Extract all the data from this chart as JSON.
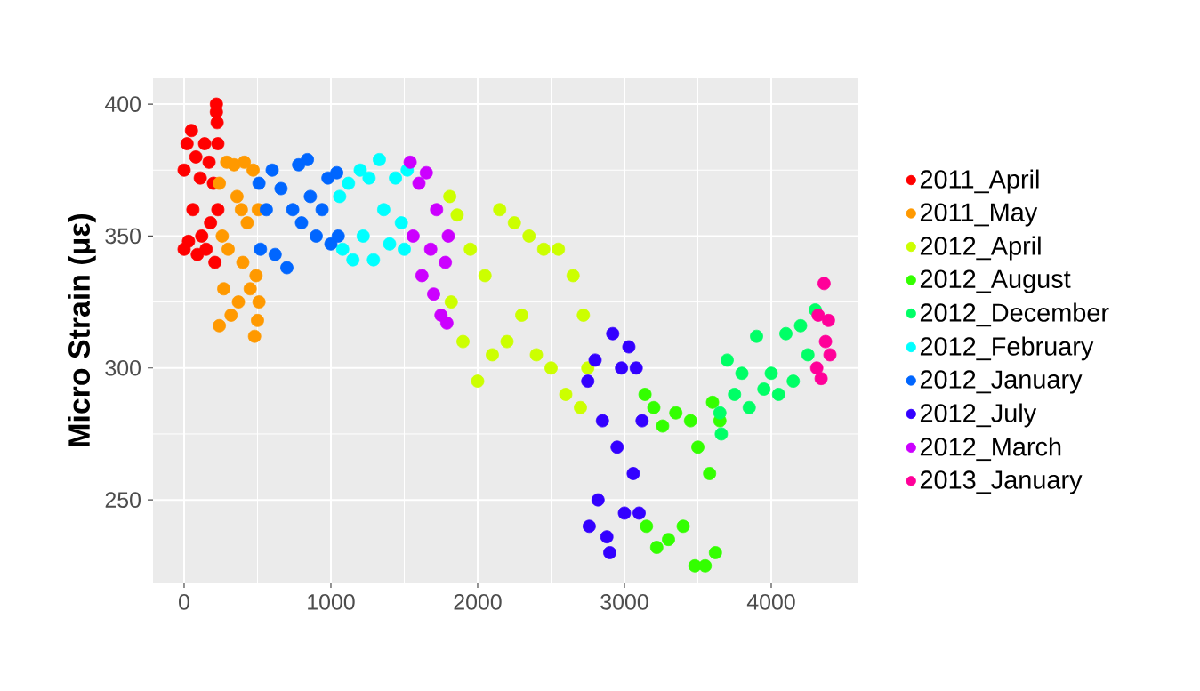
{
  "chart_data": {
    "type": "scatter",
    "ylabel": "Micro Strain (με)",
    "xlim": [
      -212,
      4594
    ],
    "ylim": [
      218.7,
      409.8
    ],
    "xticks": [
      0,
      1000,
      2000,
      3000,
      4000
    ],
    "yticks": [
      250,
      300,
      350,
      400
    ],
    "grid": true,
    "legend": "right",
    "marker": "circle",
    "series": [
      {
        "name": "2011_April",
        "color": "#ff0000",
        "x": [
          0,
          0,
          20,
          30,
          50,
          60,
          80,
          90,
          110,
          120,
          140,
          150,
          170,
          180,
          200,
          210,
          220,
          220,
          225,
          230,
          230
        ],
        "values": [
          375,
          345,
          385,
          348,
          390,
          360,
          380,
          343,
          372,
          350,
          385,
          345,
          378,
          355,
          370,
          340,
          400,
          397,
          393,
          385,
          360
        ]
      },
      {
        "name": "2011_May",
        "color": "#ff9900",
        "x": [
          240,
          240,
          260,
          270,
          290,
          300,
          320,
          340,
          360,
          370,
          390,
          400,
          410,
          430,
          450,
          470,
          480,
          490,
          500,
          505,
          510
        ],
        "values": [
          370,
          316,
          350,
          330,
          378,
          345,
          320,
          377,
          365,
          325,
          360,
          340,
          378,
          355,
          330,
          375,
          312,
          335,
          318,
          360,
          325
        ]
      },
      {
        "name": "2012_April",
        "color": "#ccff00",
        "x": [
          1810,
          1820,
          1860,
          1900,
          1950,
          2000,
          2050,
          2100,
          2150,
          2200,
          2250,
          2300,
          2350,
          2400,
          2450,
          2500,
          2550,
          2600,
          2650,
          2700,
          2720,
          2750
        ],
        "values": [
          365,
          325,
          358,
          310,
          345,
          295,
          335,
          305,
          360,
          310,
          355,
          320,
          350,
          305,
          345,
          300,
          345,
          290,
          335,
          285,
          320,
          300
        ]
      },
      {
        "name": "2012_August",
        "color": "#33ff00",
        "x": [
          3140,
          3150,
          3200,
          3220,
          3260,
          3300,
          3350,
          3400,
          3450,
          3480,
          3500,
          3550,
          3580,
          3600,
          3620,
          3650
        ],
        "values": [
          290,
          240,
          285,
          232,
          278,
          235,
          283,
          240,
          280,
          225,
          270,
          225,
          260,
          287,
          230,
          280
        ]
      },
      {
        "name": "2012_December",
        "color": "#00ff66",
        "x": [
          3650,
          3660,
          3700,
          3750,
          3800,
          3850,
          3900,
          3950,
          4000,
          4050,
          4100,
          4150,
          4200,
          4250,
          4300
        ],
        "values": [
          283,
          275,
          303,
          290,
          298,
          285,
          312,
          292,
          298,
          290,
          313,
          295,
          316,
          305,
          322
        ]
      },
      {
        "name": "2012_February",
        "color": "#00ffff",
        "x": [
          1060,
          1080,
          1120,
          1150,
          1200,
          1220,
          1260,
          1290,
          1330,
          1360,
          1400,
          1440,
          1480,
          1500,
          1520
        ],
        "values": [
          365,
          345,
          370,
          341,
          375,
          350,
          372,
          341,
          379,
          360,
          347,
          372,
          355,
          345,
          375
        ]
      },
      {
        "name": "2012_January",
        "color": "#0066ff",
        "x": [
          510,
          520,
          560,
          600,
          620,
          660,
          700,
          740,
          780,
          800,
          840,
          860,
          900,
          940,
          980,
          1000,
          1040,
          1050
        ],
        "values": [
          370,
          345,
          360,
          375,
          343,
          368,
          338,
          360,
          377,
          355,
          379,
          365,
          350,
          360,
          372,
          347,
          374,
          350
        ]
      },
      {
        "name": "2012_July",
        "color": "#3300ff",
        "x": [
          2750,
          2760,
          2800,
          2820,
          2850,
          2880,
          2900,
          2920,
          2950,
          2980,
          3000,
          3030,
          3060,
          3080,
          3100,
          3120
        ],
        "values": [
          295,
          240,
          303,
          250,
          280,
          236,
          230,
          313,
          270,
          300,
          245,
          308,
          260,
          300,
          245,
          280
        ]
      },
      {
        "name": "2012_March",
        "color": "#cc00ff",
        "x": [
          1540,
          1560,
          1600,
          1620,
          1650,
          1680,
          1700,
          1720,
          1750,
          1780,
          1790,
          1800
        ],
        "values": [
          378,
          350,
          370,
          335,
          374,
          345,
          328,
          360,
          320,
          340,
          317,
          350
        ]
      },
      {
        "name": "2013_January",
        "color": "#ff0099",
        "x": [
          4310,
          4320,
          4340,
          4360,
          4370,
          4390,
          4400
        ],
        "values": [
          300,
          320,
          296,
          332,
          310,
          318,
          305
        ]
      }
    ]
  }
}
